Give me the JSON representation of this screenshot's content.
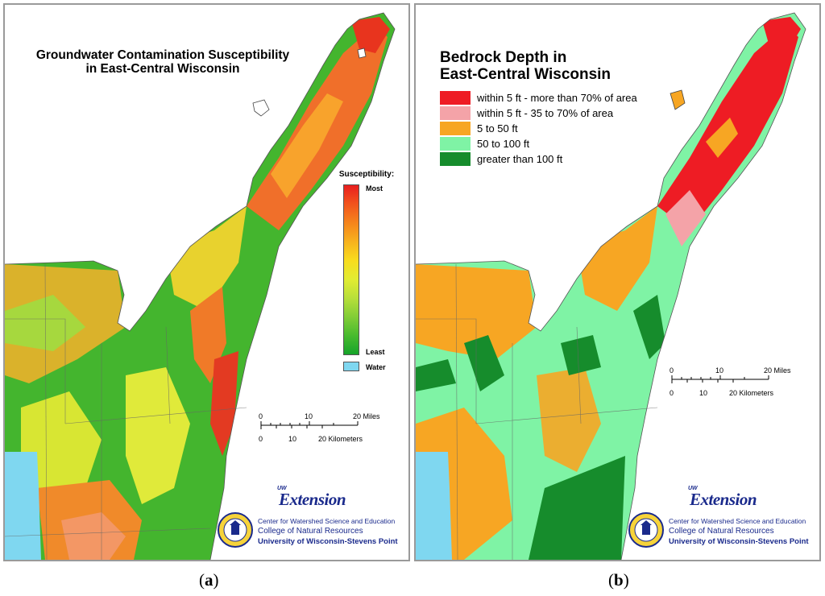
{
  "panels": [
    {
      "label_open": "(",
      "label_letter": "a",
      "label_close": ")",
      "title_line1": "Groundwater Contamination Susceptibility",
      "title_line2": "in East-Central Wisconsin",
      "legend": {
        "heading": "Susceptibility:",
        "most": "Most",
        "least": "Least",
        "water": "Water",
        "ramp_colors": [
          "#e81e1e",
          "#f2541c",
          "#f5841c",
          "#f7b21e",
          "#f8dc1e",
          "#e2ec32",
          "#b8df3a",
          "#82cd36",
          "#48bb2e",
          "#16a42a"
        ],
        "water_color": "#7fd7f0"
      },
      "scale": {
        "miles_ticks": [
          "0",
          "10",
          "20 Miles"
        ],
        "km_ticks": [
          "0",
          "10",
          "20 Kilometers"
        ]
      },
      "credits": {
        "extension_small": "UW",
        "extension": "Extension",
        "line1": "Center for Watershed Science and Education",
        "line2": "College of Natural Resources",
        "line3": "University of Wisconsin-Stevens Point"
      }
    },
    {
      "label_open": "(",
      "label_letter": "b",
      "label_close": ")",
      "title_line1": "Bedrock Depth in",
      "title_line2": "East-Central Wisconsin",
      "legend": {
        "items": [
          {
            "label": "within 5 ft - more than 70% of area",
            "color": "#ee1c24"
          },
          {
            "label": "within 5 ft - 35 to 70% of area",
            "color": "#f4a3a8"
          },
          {
            "label": "5 to 50 ft",
            "color": "#f7a623"
          },
          {
            "label": "50 to 100 ft",
            "color": "#7ff3a5"
          },
          {
            "label": "greater than 100 ft",
            "color": "#168c2c"
          }
        ]
      },
      "scale": {
        "miles_ticks": [
          "0",
          "10",
          "20 Miles"
        ],
        "km_ticks": [
          "0",
          "10",
          "20 Kilometers"
        ]
      },
      "credits": {
        "extension_small": "UW",
        "extension": "Extension",
        "line1": "Center for Watershed Science and Education",
        "line2": "College of Natural Resources",
        "line3": "University of Wisconsin-Stevens Point"
      }
    }
  ]
}
